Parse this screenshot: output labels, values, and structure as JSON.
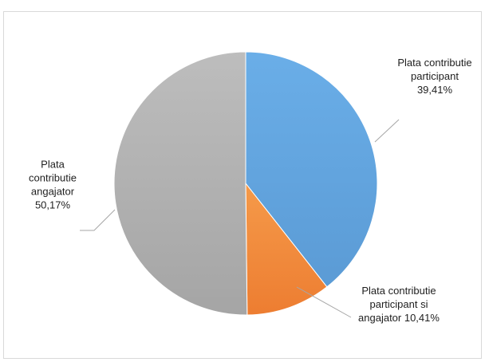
{
  "chart_data": {
    "type": "pie",
    "title": "",
    "slices": [
      {
        "label_lines": [
          "Plata contributie",
          "participant",
          "39,41%"
        ],
        "value": 39.41,
        "color": "#5b9bd5",
        "color_light": "#6aaee8"
      },
      {
        "label_lines": [
          "Plata contributie",
          "participant si",
          "angajator 10,41%"
        ],
        "value": 10.41,
        "color": "#ed7d31",
        "color_light": "#f59a4a"
      },
      {
        "label_lines": [
          "Plata",
          "contributie",
          "angajator",
          "50,17%"
        ],
        "value": 50.17,
        "color": "#a5a5a5",
        "color_light": "#bdbdbd"
      }
    ],
    "start_angle_deg": 0,
    "direction": "clockwise",
    "legend": "none"
  },
  "colors": {
    "frame_border": "#d9d9d9",
    "leader_line": "#a6a6a6",
    "text": "#1f1f1f"
  }
}
